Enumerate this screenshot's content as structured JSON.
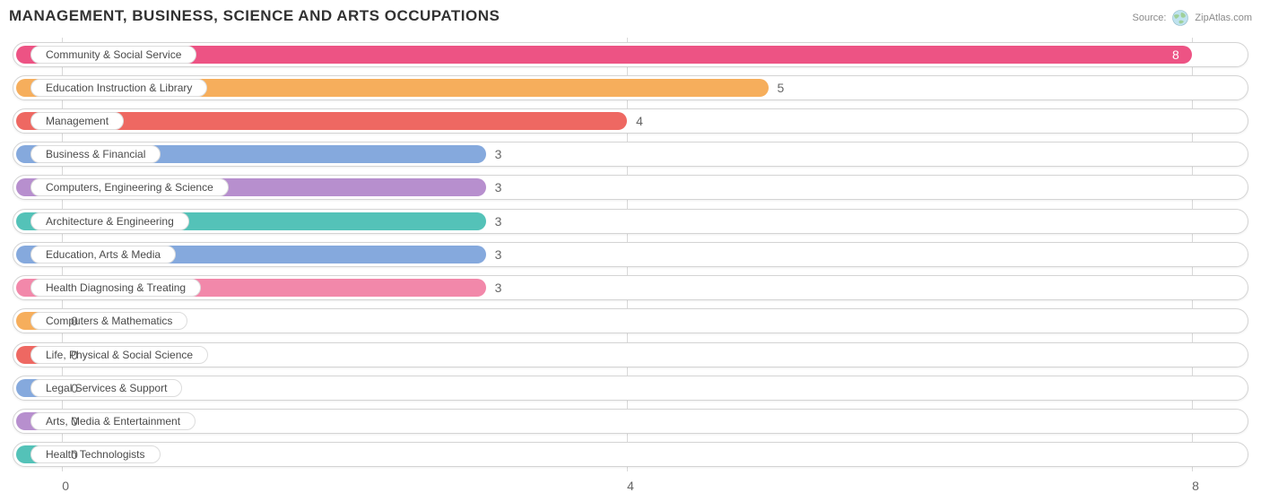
{
  "title": "MANAGEMENT, BUSINESS, SCIENCE AND ARTS OCCUPATIONS",
  "source_label": "Source:",
  "source_name": "ZipAtlas.com",
  "chart": {
    "type": "bar-horizontal",
    "background_color": "#ffffff",
    "track_bg": "#ffffff",
    "track_border": "#d4d4d4",
    "grid_color": "#d9d9d9",
    "label_fontsize": 12,
    "value_fontsize": 14,
    "title_fontsize": 17,
    "x_axis": {
      "min": -0.35,
      "max": 8.4,
      "ticks": [
        0,
        4,
        8
      ],
      "tick_labels": [
        "0",
        "4",
        "8"
      ]
    },
    "bars": [
      {
        "label": "Community & Social Service",
        "value": 8,
        "color": "#ed5384"
      },
      {
        "label": "Education Instruction & Library",
        "value": 5,
        "color": "#f6ae5c"
      },
      {
        "label": "Management",
        "value": 4,
        "color": "#ee6862"
      },
      {
        "label": "Business & Financial",
        "value": 3,
        "color": "#85a9dd"
      },
      {
        "label": "Computers, Engineering & Science",
        "value": 3,
        "color": "#b78fce"
      },
      {
        "label": "Architecture & Engineering",
        "value": 3,
        "color": "#54c2b8"
      },
      {
        "label": "Education, Arts & Media",
        "value": 3,
        "color": "#85a9dd"
      },
      {
        "label": "Health Diagnosing & Treating",
        "value": 3,
        "color": "#f288aa"
      },
      {
        "label": "Computers & Mathematics",
        "value": 0,
        "color": "#f6ae5c"
      },
      {
        "label": "Life, Physical & Social Science",
        "value": 0,
        "color": "#ee6862"
      },
      {
        "label": "Legal Services & Support",
        "value": 0,
        "color": "#85a9dd"
      },
      {
        "label": "Arts, Media & Entertainment",
        "value": 0,
        "color": "#b78fce"
      },
      {
        "label": "Health Technologists",
        "value": 0,
        "color": "#54c2b8"
      }
    ]
  }
}
